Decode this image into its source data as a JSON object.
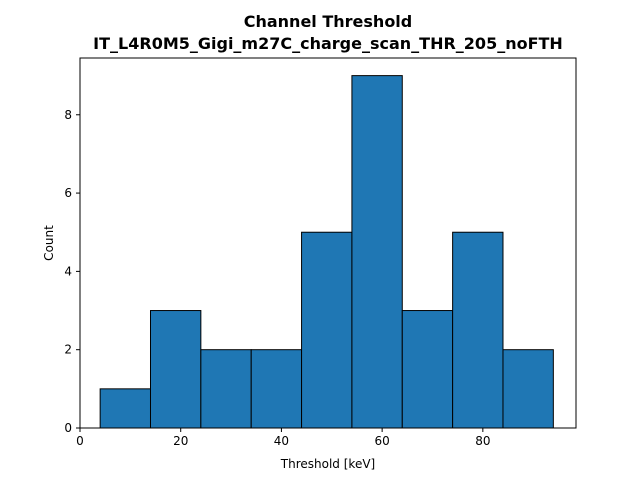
{
  "chart_data": {
    "type": "bar",
    "title": "Channel Threshold",
    "subtitle": "IT_L4R0M5_Gigi_m27C_charge_scan_THR_205_noFTH",
    "xlabel": "Threshold [keV]",
    "ylabel": "Count",
    "bin_edges": [
      4,
      14,
      24,
      34,
      44,
      54,
      64,
      74,
      84,
      94
    ],
    "values": [
      1,
      3,
      2,
      2,
      5,
      9,
      3,
      5,
      2
    ],
    "xlim": [
      0,
      98.5
    ],
    "ylim": [
      0,
      9.45
    ],
    "xticks": [
      0,
      20,
      40,
      60,
      80
    ],
    "yticks": [
      0,
      2,
      4,
      6,
      8
    ],
    "grid": false,
    "bar_color": "#1f77b4",
    "edge_color": "#000000"
  }
}
